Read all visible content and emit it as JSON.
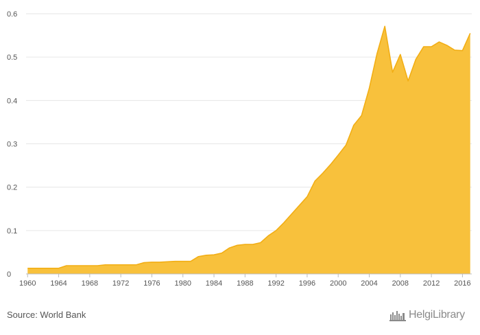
{
  "chart_data": {
    "type": "area",
    "title": "",
    "xlabel": "",
    "ylabel": "",
    "x": [
      1960,
      1961,
      1962,
      1963,
      1964,
      1965,
      1966,
      1967,
      1968,
      1969,
      1970,
      1971,
      1972,
      1973,
      1974,
      1975,
      1976,
      1977,
      1978,
      1979,
      1980,
      1981,
      1982,
      1983,
      1984,
      1985,
      1986,
      1987,
      1988,
      1989,
      1990,
      1991,
      1992,
      1993,
      1994,
      1995,
      1996,
      1997,
      1998,
      1999,
      2000,
      2001,
      2002,
      2003,
      2004,
      2005,
      2006,
      2007,
      2008,
      2009,
      2010,
      2011,
      2012,
      2013,
      2014,
      2015,
      2016,
      2017
    ],
    "values": [
      0.013,
      0.013,
      0.013,
      0.013,
      0.013,
      0.019,
      0.019,
      0.019,
      0.019,
      0.019,
      0.021,
      0.021,
      0.021,
      0.021,
      0.021,
      0.026,
      0.027,
      0.027,
      0.028,
      0.029,
      0.029,
      0.029,
      0.04,
      0.043,
      0.044,
      0.048,
      0.06,
      0.066,
      0.068,
      0.068,
      0.072,
      0.088,
      0.1,
      0.118,
      0.138,
      0.158,
      0.178,
      0.214,
      0.232,
      0.252,
      0.274,
      0.297,
      0.343,
      0.365,
      0.428,
      0.508,
      0.571,
      0.465,
      0.506,
      0.445,
      0.495,
      0.524,
      0.524,
      0.535,
      0.527,
      0.516,
      0.515,
      0.555
    ],
    "xlim": [
      1959.8,
      2017.2
    ],
    "ylim": [
      0,
      0.6
    ],
    "yticks": [
      0,
      0.1,
      0.2,
      0.3,
      0.4,
      0.5,
      0.6
    ],
    "ytick_labels": [
      "0",
      "0.1",
      "0.2",
      "0.3",
      "0.4",
      "0.5",
      "0.6"
    ],
    "xticks": [
      1960,
      1964,
      1968,
      1972,
      1976,
      1980,
      1984,
      1988,
      1992,
      1996,
      2000,
      2004,
      2008,
      2012,
      2016
    ],
    "xtick_labels": [
      "1960",
      "1964",
      "1968",
      "1972",
      "1976",
      "1980",
      "1984",
      "1988",
      "1992",
      "1996",
      "2000",
      "2004",
      "2008",
      "2012",
      "2016"
    ],
    "grid": true,
    "legend": "none",
    "colors": {
      "fill": "#F8C13C",
      "line": "#F2AE15",
      "grid": "#E6E6E6",
      "axis": "#BBBBBB"
    }
  },
  "footer": {
    "source": "Source: World Bank",
    "logo_text": "HelgiLibrary",
    "logo_icon": "library-icon"
  }
}
